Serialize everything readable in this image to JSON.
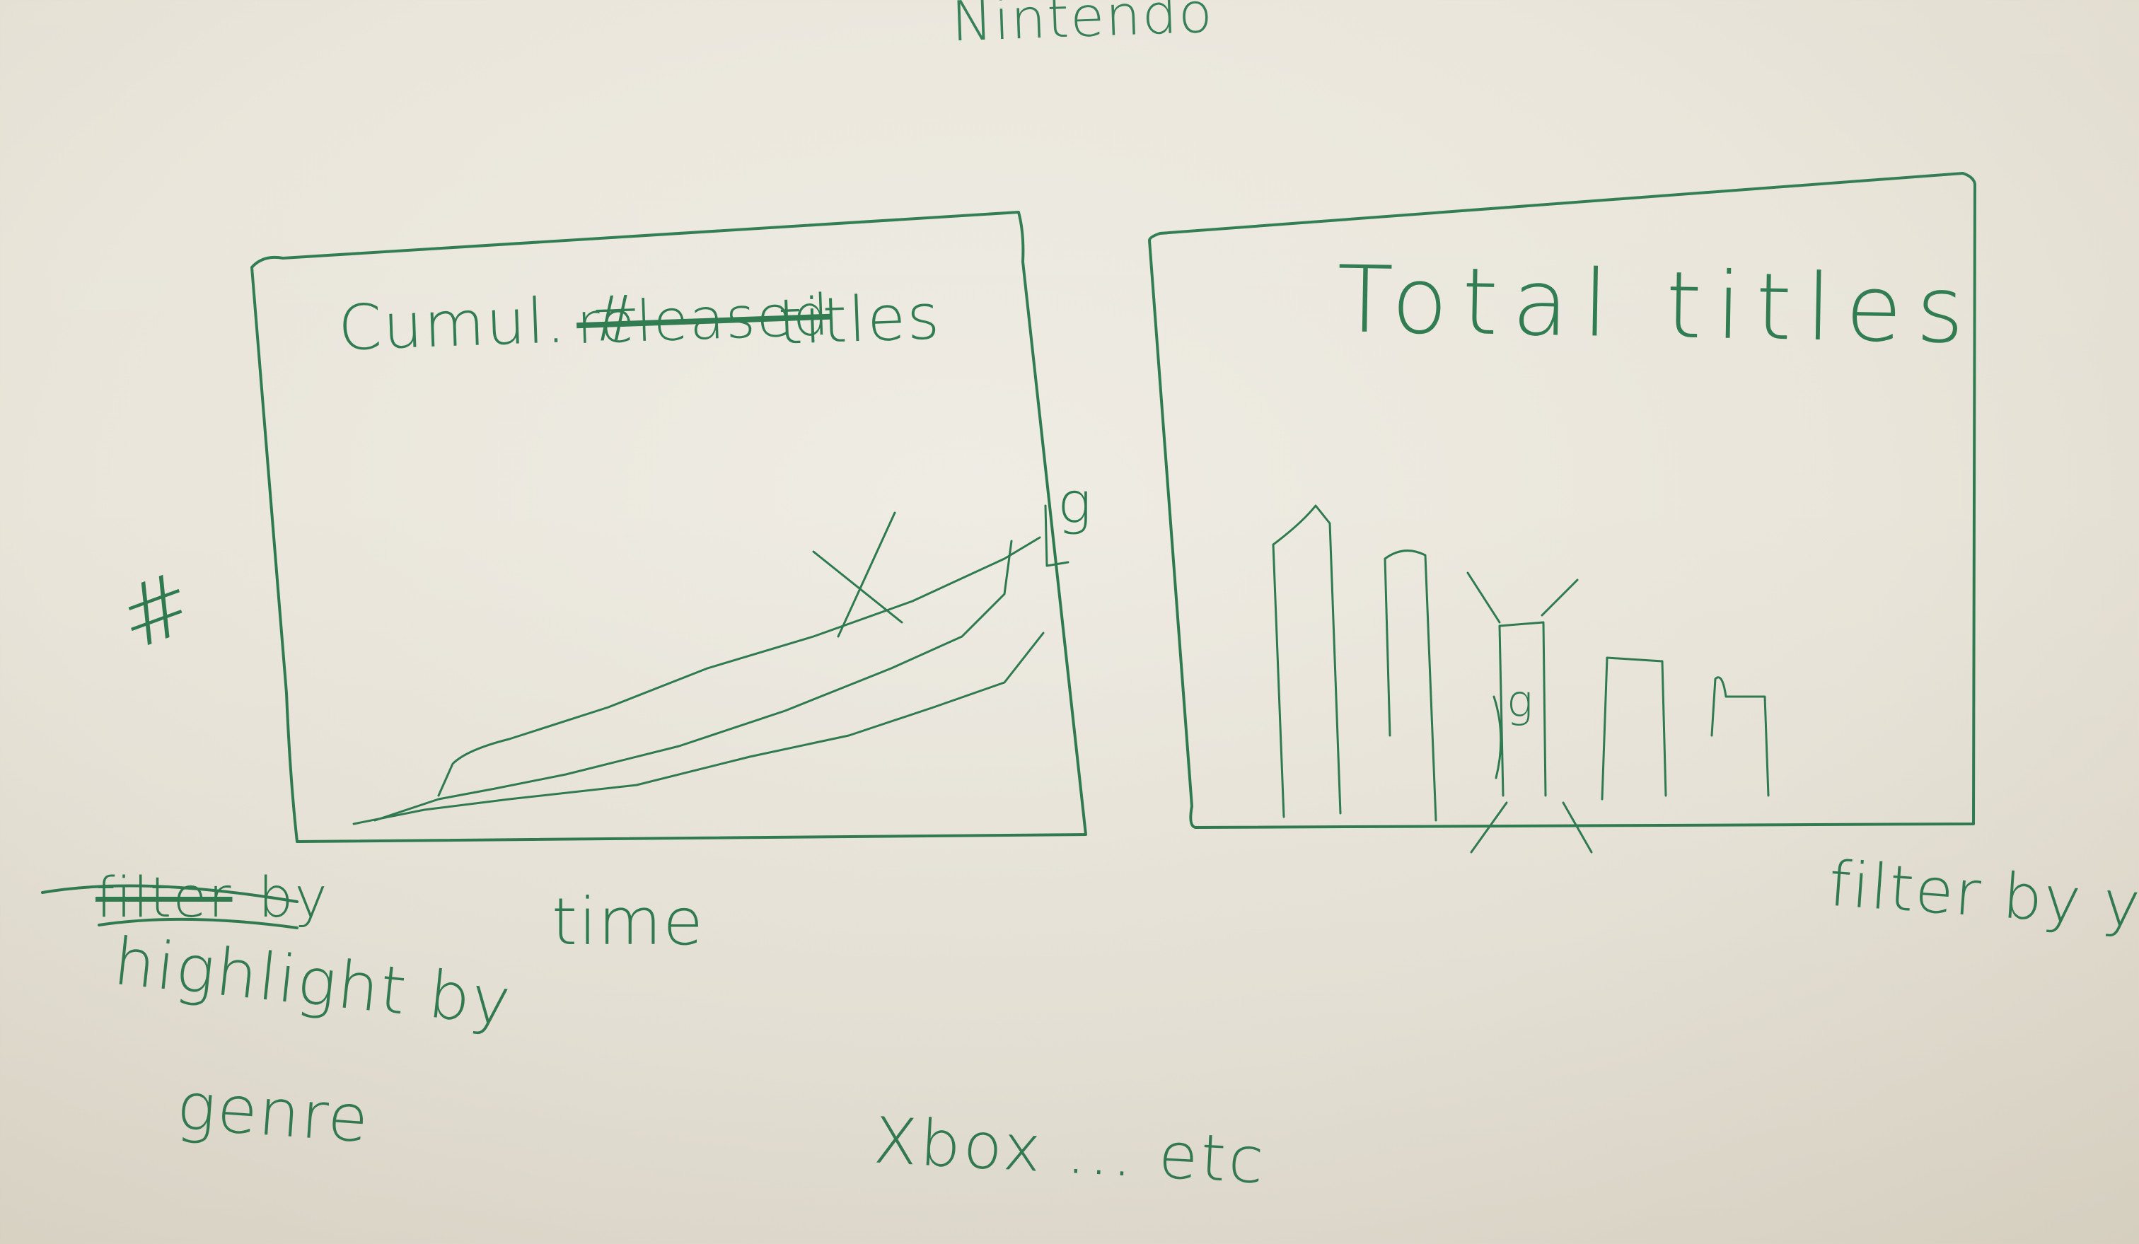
{
  "header": {
    "console_partial": "Nintendo"
  },
  "left_chart": {
    "title_prefix": "Cumul. #",
    "title_struck": "released",
    "title_suffix": "titles",
    "y_axis_label": "#",
    "x_axis_label": "time",
    "line_end_label": "g",
    "note_struck": "filter",
    "note_by": "by",
    "note_line1": "highlight by",
    "note_line2": "genre"
  },
  "right_chart": {
    "title": "Total titles",
    "bar_label": "g",
    "note": "filter by ye"
  },
  "footer": {
    "note": "Xbox ... etc"
  },
  "colors": {
    "ink": "#2e7a4f",
    "paper": "#ece8df"
  }
}
